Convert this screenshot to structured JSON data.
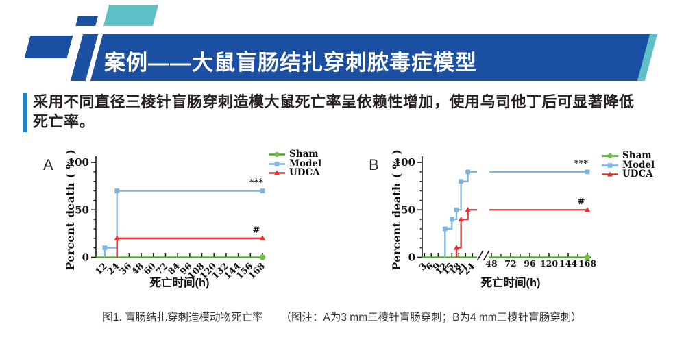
{
  "header": {
    "title": "案例——大鼠盲肠结扎穿刺脓毒症模型"
  },
  "summary": {
    "line1": "采用不同直径三棱针盲肠穿刺造模大鼠死亡率呈依赖性增加，使用乌司他丁后可显著降低",
    "line2": "死亡率。"
  },
  "caption": {
    "figure_label": "图1. 盲肠结扎穿刺造模动物死亡率",
    "note": "（图注：A为3 mm三棱针盲肠穿刺；B为4 mm三棱针盲肠穿刺）"
  },
  "colors": {
    "primary_blue": "#1b4fa1",
    "teal": "#5fc0c8",
    "accent_blue": "#1787d8",
    "sham_green": "#52a32b",
    "sham_marker_green": "#6dbf43",
    "model_blue": "#7fb5e2",
    "udca_red": "#e8302e",
    "axis_black": "#1a1a1a"
  },
  "chart_data": [
    {
      "type": "line",
      "panel_label": "A",
      "xlabel": "死亡时间(h)",
      "ylabel": "Percent death ( % )",
      "ylim": [
        0,
        100
      ],
      "yticks": [
        0,
        50,
        100
      ],
      "xticks": [
        12,
        24,
        36,
        48,
        60,
        72,
        84,
        96,
        108,
        120,
        132,
        144,
        156,
        168
      ],
      "x_tick_rotation": -45,
      "axis_break": false,
      "legend_position": "outside-right-top",
      "legend_entries": [
        "Sham",
        "Model",
        "UDCA"
      ],
      "series": [
        {
          "name": "Sham",
          "marker": "circle",
          "steps": [
            [
              0,
              0
            ],
            [
              168,
              0
            ]
          ],
          "markers": [
            [
              168,
              0
            ]
          ],
          "annotation": null
        },
        {
          "name": "Model",
          "marker": "square",
          "steps": [
            [
              12,
              0
            ],
            [
              12,
              10
            ],
            [
              24,
              10
            ],
            [
              24,
              70
            ],
            [
              168,
              70
            ]
          ],
          "markers": [
            [
              12,
              10
            ],
            [
              24,
              70
            ],
            [
              168,
              70
            ]
          ],
          "annotation": "***"
        },
        {
          "name": "UDCA",
          "marker": "triangle",
          "steps": [
            [
              24,
              0
            ],
            [
              24,
              20
            ],
            [
              168,
              20
            ]
          ],
          "markers": [
            [
              24,
              20
            ],
            [
              168,
              20
            ]
          ],
          "annotation": "#"
        }
      ]
    },
    {
      "type": "line",
      "panel_label": "B",
      "xlabel": "死亡时间(h)",
      "ylabel": "Percent death ( % )",
      "ylim": [
        0,
        100
      ],
      "yticks": [
        0,
        50,
        100
      ],
      "xticks_before_break": [
        3,
        6,
        9,
        12,
        15,
        18,
        21,
        24
      ],
      "xticks_after_break": [
        48,
        72,
        96,
        120,
        144,
        168
      ],
      "xticks_after_break_minor": [
        60,
        84,
        108,
        132,
        156
      ],
      "x_tick_rotation": -45,
      "axis_break": true,
      "legend_position": "outside-right-top",
      "legend_entries": [
        "Sham",
        "Model",
        "UDCA"
      ],
      "series": [
        {
          "name": "Sham",
          "marker": "circle",
          "steps": [
            [
              0,
              0
            ],
            [
              168,
              0
            ]
          ],
          "markers": [
            [
              168,
              0
            ]
          ],
          "annotation": null
        },
        {
          "name": "Model",
          "marker": "square",
          "steps": [
            [
              12,
              0
            ],
            [
              12,
              30
            ],
            [
              15,
              30
            ],
            [
              15,
              40
            ],
            [
              17,
              40
            ],
            [
              17,
              50
            ],
            [
              19,
              50
            ],
            [
              19,
              80
            ],
            [
              22,
              80
            ],
            [
              22,
              90
            ],
            [
              168,
              90
            ]
          ],
          "markers": [
            [
              12,
              30
            ],
            [
              15,
              40
            ],
            [
              17,
              50
            ],
            [
              19,
              80
            ],
            [
              22,
              90
            ],
            [
              168,
              90
            ]
          ],
          "annotation": "***"
        },
        {
          "name": "UDCA",
          "marker": "triangle",
          "steps": [
            [
              17,
              0
            ],
            [
              17,
              10
            ],
            [
              19,
              10
            ],
            [
              19,
              40
            ],
            [
              22,
              40
            ],
            [
              22,
              50
            ],
            [
              168,
              50
            ]
          ],
          "markers": [
            [
              17,
              10
            ],
            [
              19,
              40
            ],
            [
              22,
              50
            ],
            [
              168,
              50
            ]
          ],
          "annotation": "#"
        }
      ]
    }
  ]
}
